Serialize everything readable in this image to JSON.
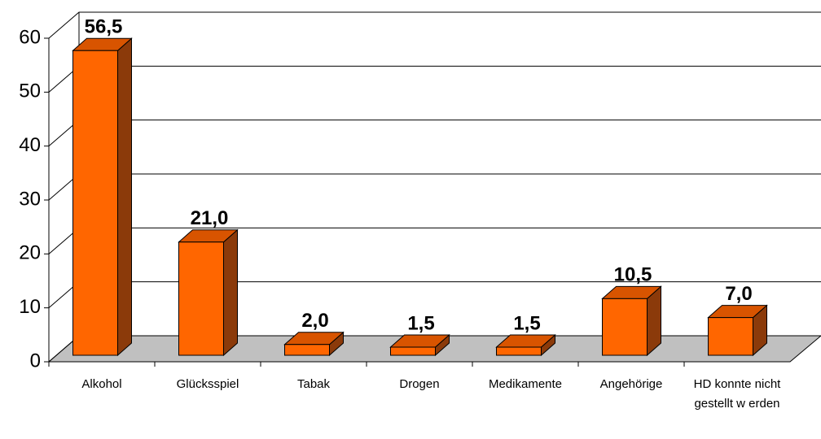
{
  "chart_data": {
    "type": "bar3d",
    "categories": [
      "Alkohol",
      "Glücksspiel",
      "Tabak",
      "Drogen",
      "Medikamente",
      "Angehörige",
      "HD konnte nicht gestellt w erden"
    ],
    "values": [
      56.5,
      21.0,
      2.0,
      1.5,
      1.5,
      10.5,
      7.0
    ],
    "value_labels": [
      "56,5",
      "21,0",
      "2,0",
      "1,5",
      "1,5",
      "10,5",
      "7,0"
    ],
    "color": "#ff6600",
    "ylim": [
      0,
      60
    ],
    "yticks": [
      0,
      10,
      20,
      30,
      40,
      50,
      60
    ],
    "grid": true
  }
}
